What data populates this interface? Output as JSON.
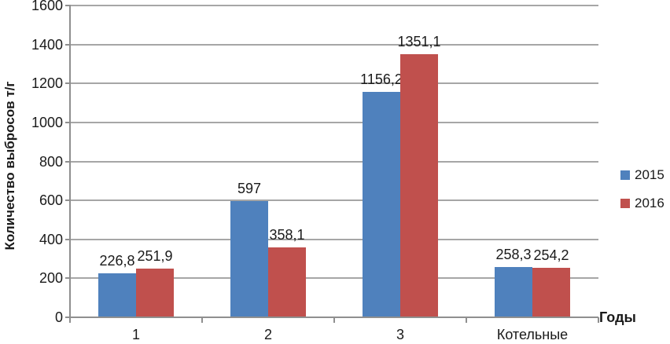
{
  "chart_data": {
    "type": "bar",
    "title": "",
    "categories": [
      "1",
      "2",
      "3",
      "Котельные"
    ],
    "series": [
      {
        "name": "2015",
        "color": "#4F81BD",
        "values": [
          226.8,
          597,
          1156.2,
          258.3
        ],
        "labels": [
          "226,8",
          "597",
          "1156,2",
          "258,3"
        ]
      },
      {
        "name": "2016",
        "color": "#C0504D",
        "values": [
          251.9,
          358.1,
          1351.1,
          254.2
        ],
        "labels": [
          "251,9",
          "358,1",
          "1351,1",
          "254,2"
        ]
      }
    ],
    "xlabel": "Годы",
    "ylabel": "Количество выбросов т/г",
    "ylim": [
      0,
      1600
    ],
    "ytick_step": 200,
    "yticks": [
      "0",
      "200",
      "400",
      "600",
      "800",
      "1000",
      "1200",
      "1400",
      "1600"
    ],
    "grid": true,
    "legend_position": "right",
    "colors": {
      "grid": "#a6a6a6",
      "axis": "#8f8f8f",
      "text": "#1a1a1a"
    }
  }
}
